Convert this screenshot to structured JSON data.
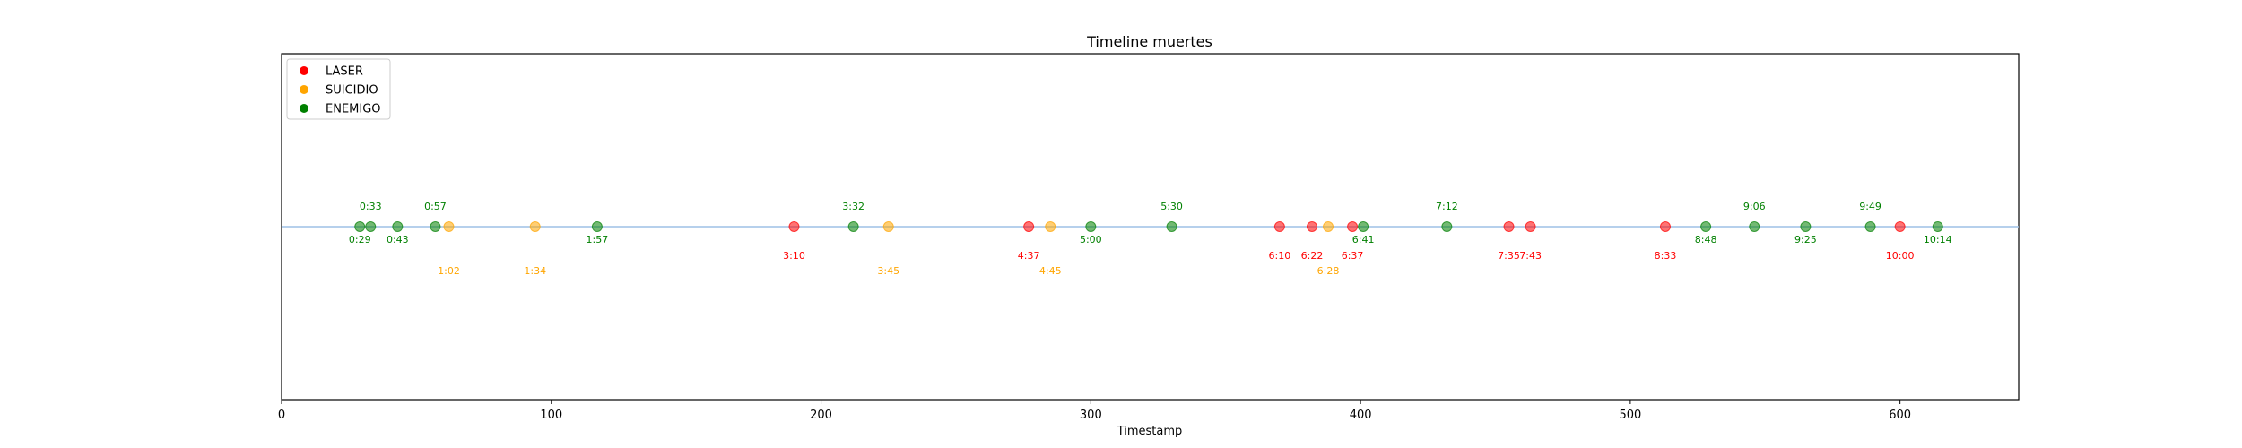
{
  "chart_data": {
    "type": "scatter",
    "title": "Timeline muertes",
    "xlabel": "Timestamp",
    "ylabel": "",
    "xlim": [
      0,
      644
    ],
    "xticks": [
      0,
      100,
      200,
      300,
      400,
      500,
      600
    ],
    "grid": false,
    "legend_position": "top-left",
    "baseline_color": "#9ec1e6",
    "series": [
      {
        "name": "LASER",
        "color": "#ff0000",
        "points": [
          {
            "x": 190,
            "label": "3:10"
          },
          {
            "x": 277,
            "label": "4:37"
          },
          {
            "x": 370,
            "label": "6:10"
          },
          {
            "x": 382,
            "label": "6:22"
          },
          {
            "x": 397,
            "label": "6:37"
          },
          {
            "x": 455,
            "label": "7:35"
          },
          {
            "x": 463,
            "label": "7:43"
          },
          {
            "x": 513,
            "label": "8:33"
          },
          {
            "x": 600,
            "label": "10:00"
          }
        ]
      },
      {
        "name": "SUICIDIO",
        "color": "#ffa500",
        "points": [
          {
            "x": 62,
            "label": "1:02"
          },
          {
            "x": 94,
            "label": "1:34"
          },
          {
            "x": 225,
            "label": "3:45"
          },
          {
            "x": 285,
            "label": "4:45"
          },
          {
            "x": 388,
            "label": "6:28"
          }
        ]
      },
      {
        "name": "ENEMIGO",
        "color": "#008000",
        "points": [
          {
            "x": 29,
            "label": "0:29",
            "pos": "below"
          },
          {
            "x": 33,
            "label": "0:33",
            "pos": "above"
          },
          {
            "x": 43,
            "label": "0:43",
            "pos": "below"
          },
          {
            "x": 57,
            "label": "0:57",
            "pos": "above"
          },
          {
            "x": 117,
            "label": "1:57",
            "pos": "below"
          },
          {
            "x": 212,
            "label": "3:32",
            "pos": "above"
          },
          {
            "x": 300,
            "label": "5:00",
            "pos": "below"
          },
          {
            "x": 330,
            "label": "5:30",
            "pos": "above"
          },
          {
            "x": 401,
            "label": "6:41",
            "pos": "below"
          },
          {
            "x": 432,
            "label": "7:12",
            "pos": "above"
          },
          {
            "x": 528,
            "label": "8:48",
            "pos": "below"
          },
          {
            "x": 546,
            "label": "9:06",
            "pos": "above"
          },
          {
            "x": 565,
            "label": "9:25",
            "pos": "below"
          },
          {
            "x": 589,
            "label": "9:49",
            "pos": "above"
          },
          {
            "x": 614,
            "label": "10:14",
            "pos": "below"
          }
        ]
      }
    ]
  }
}
